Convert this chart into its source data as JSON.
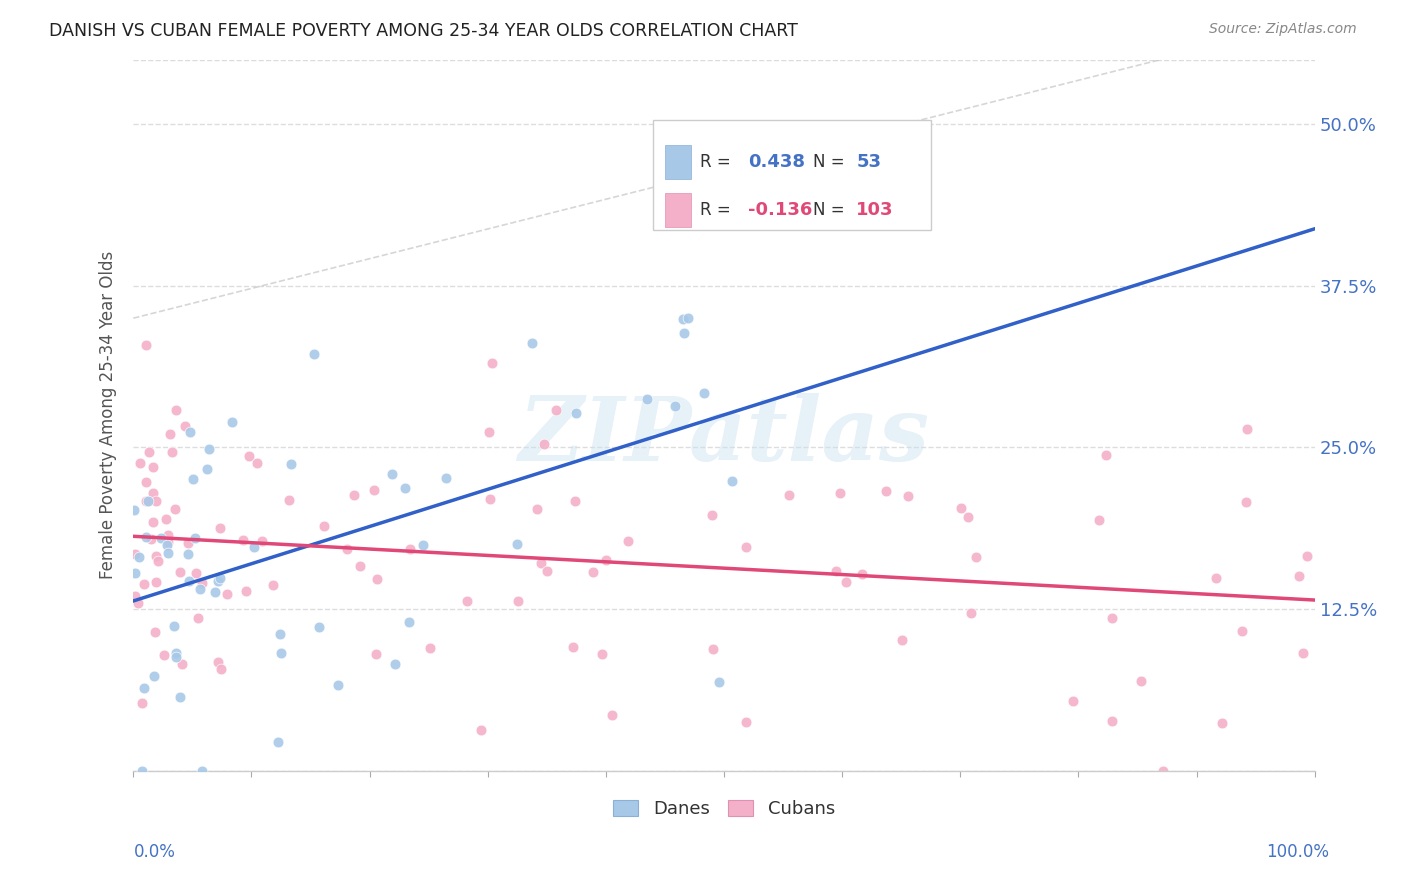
{
  "title": "DANISH VS CUBAN FEMALE POVERTY AMONG 25-34 YEAR OLDS CORRELATION CHART",
  "source": "Source: ZipAtlas.com",
  "ylabel": "Female Poverty Among 25-34 Year Olds",
  "ytick_labels": [
    "",
    "12.5%",
    "25.0%",
    "37.5%",
    "50.0%"
  ],
  "danes_R": 0.438,
  "danes_N": 53,
  "cubans_R": -0.136,
  "cubans_N": 103,
  "danes_color": "#a8c8e8",
  "cubans_color": "#f4b0c8",
  "danes_line_color": "#3060c8",
  "cubans_line_color": "#e04878",
  "watermark_text": "ZIPatlas",
  "xlim": [
    0.0,
    1.0
  ],
  "ylim": [
    0.0,
    0.55
  ],
  "background_color": "#ffffff",
  "grid_color": "#dddddd"
}
